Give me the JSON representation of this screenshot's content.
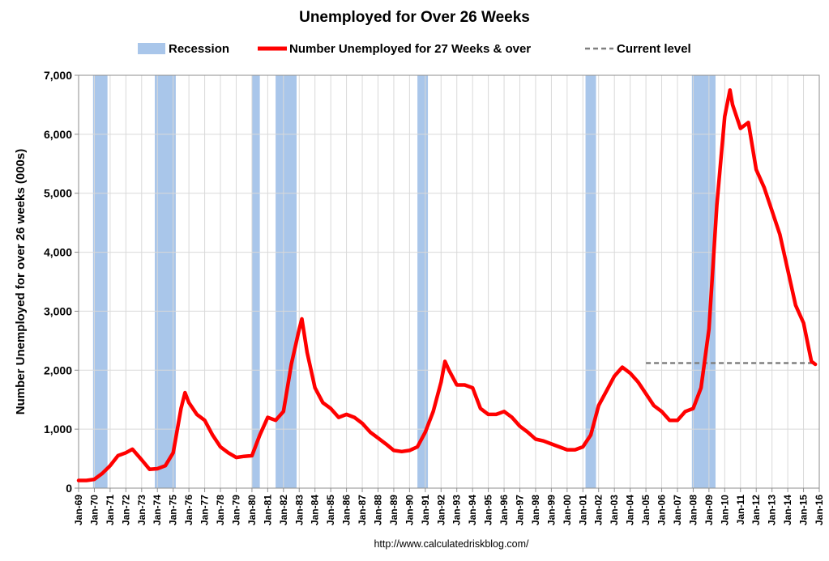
{
  "chart_data": {
    "type": "line",
    "title": "Unemployed for Over 26 Weeks",
    "ylabel": "Number Unemployed for over 26 weeks (000s)",
    "xlabel": "",
    "ylim": [
      0,
      7000
    ],
    "xlim": [
      "Jan-69",
      "Jan-16"
    ],
    "grid": true,
    "legend_position": "top",
    "legend": [
      {
        "key": "recession",
        "label": "Recession",
        "color": "#a9c6ea"
      },
      {
        "key": "series",
        "label": "Number Unemployed for 27 Weeks & over",
        "color": "#ff0000"
      },
      {
        "key": "current",
        "label": "Current level",
        "color": "#808080"
      }
    ],
    "y_ticks": [
      0,
      1000,
      2000,
      3000,
      4000,
      5000,
      6000,
      7000
    ],
    "y_tick_labels": [
      "0",
      "1,000",
      "2,000",
      "3,000",
      "4,000",
      "5,000",
      "6,000",
      "7,000"
    ],
    "x_tick_labels": [
      "Jan-69",
      "Jan-70",
      "Jan-71",
      "Jan-72",
      "Jan-73",
      "Jan-74",
      "Jan-75",
      "Jan-76",
      "Jan-77",
      "Jan-78",
      "Jan-79",
      "Jan-80",
      "Jan-81",
      "Jan-82",
      "Jan-83",
      "Jan-84",
      "Jan-85",
      "Jan-86",
      "Jan-87",
      "Jan-88",
      "Jan-89",
      "Jan-90",
      "Jan-91",
      "Jan-92",
      "Jan-93",
      "Jan-94",
      "Jan-95",
      "Jan-96",
      "Jan-97",
      "Jan-98",
      "Jan-99",
      "Jan-00",
      "Jan-01",
      "Jan-02",
      "Jan-03",
      "Jan-04",
      "Jan-05",
      "Jan-06",
      "Jan-07",
      "Jan-08",
      "Jan-09",
      "Jan-10",
      "Jan-11",
      "Jan-12",
      "Jan-13",
      "Jan-14",
      "Jan-15",
      "Jan-16"
    ],
    "recessions": [
      [
        "Dec-69",
        "Nov-70"
      ],
      [
        "Nov-73",
        "Mar-75"
      ],
      [
        "Jan-80",
        "Jul-80"
      ],
      [
        "Jul-81",
        "Nov-82"
      ],
      [
        "Jul-90",
        "Mar-91"
      ],
      [
        "Mar-01",
        "Nov-01"
      ],
      [
        "Dec-07",
        "Jun-09"
      ]
    ],
    "series": [
      {
        "name": "Number Unemployed for 27 Weeks & over",
        "color": "#ff0000",
        "points": [
          [
            "Jan-69",
            130
          ],
          [
            "Jul-69",
            130
          ],
          [
            "Jan-70",
            150
          ],
          [
            "Jul-70",
            250
          ],
          [
            "Jan-71",
            380
          ],
          [
            "Jul-71",
            550
          ],
          [
            "Jan-72",
            600
          ],
          [
            "Jun-72",
            660
          ],
          [
            "Jan-73",
            480
          ],
          [
            "Jul-73",
            320
          ],
          [
            "Jan-74",
            330
          ],
          [
            "Jul-74",
            380
          ],
          [
            "Jan-75",
            600
          ],
          [
            "Jul-75",
            1350
          ],
          [
            "Oct-75",
            1620
          ],
          [
            "Jan-76",
            1450
          ],
          [
            "Jul-76",
            1250
          ],
          [
            "Jan-77",
            1150
          ],
          [
            "Jul-77",
            900
          ],
          [
            "Jan-78",
            700
          ],
          [
            "Jul-78",
            600
          ],
          [
            "Jan-79",
            520
          ],
          [
            "Jul-79",
            540
          ],
          [
            "Jan-80",
            550
          ],
          [
            "Jul-80",
            900
          ],
          [
            "Jan-81",
            1200
          ],
          [
            "Jul-81",
            1150
          ],
          [
            "Jan-82",
            1300
          ],
          [
            "Jul-82",
            2100
          ],
          [
            "Jan-83",
            2700
          ],
          [
            "Mar-83",
            2870
          ],
          [
            "Jul-83",
            2300
          ],
          [
            "Jan-84",
            1700
          ],
          [
            "Jul-84",
            1450
          ],
          [
            "Jan-85",
            1350
          ],
          [
            "Jul-85",
            1200
          ],
          [
            "Jan-86",
            1250
          ],
          [
            "Jul-86",
            1200
          ],
          [
            "Jan-87",
            1100
          ],
          [
            "Jul-87",
            950
          ],
          [
            "Jan-88",
            850
          ],
          [
            "Jul-88",
            750
          ],
          [
            "Jan-89",
            640
          ],
          [
            "Jul-89",
            620
          ],
          [
            "Jan-90",
            640
          ],
          [
            "Jul-90",
            700
          ],
          [
            "Jan-91",
            950
          ],
          [
            "Jul-91",
            1300
          ],
          [
            "Jan-92",
            1800
          ],
          [
            "Apr-92",
            2150
          ],
          [
            "Jul-92",
            2000
          ],
          [
            "Jan-93",
            1750
          ],
          [
            "Jul-93",
            1750
          ],
          [
            "Jan-94",
            1700
          ],
          [
            "Jul-94",
            1350
          ],
          [
            "Jan-95",
            1250
          ],
          [
            "Jul-95",
            1250
          ],
          [
            "Jan-96",
            1300
          ],
          [
            "Jul-96",
            1200
          ],
          [
            "Jan-97",
            1050
          ],
          [
            "Jul-97",
            950
          ],
          [
            "Jan-98",
            830
          ],
          [
            "Jul-98",
            800
          ],
          [
            "Jan-99",
            750
          ],
          [
            "Jul-99",
            700
          ],
          [
            "Jan-00",
            650
          ],
          [
            "Jul-00",
            650
          ],
          [
            "Jan-01",
            700
          ],
          [
            "Jul-01",
            900
          ],
          [
            "Jan-02",
            1400
          ],
          [
            "Jul-02",
            1650
          ],
          [
            "Jan-03",
            1900
          ],
          [
            "Jul-03",
            2050
          ],
          [
            "Jan-04",
            1950
          ],
          [
            "Jul-04",
            1800
          ],
          [
            "Jan-05",
            1600
          ],
          [
            "Jul-05",
            1400
          ],
          [
            "Jan-06",
            1300
          ],
          [
            "Jul-06",
            1150
          ],
          [
            "Jan-07",
            1150
          ],
          [
            "Jul-07",
            1300
          ],
          [
            "Jan-08",
            1350
          ],
          [
            "Jul-08",
            1700
          ],
          [
            "Jan-09",
            2700
          ],
          [
            "Jul-09",
            4800
          ],
          [
            "Jan-10",
            6300
          ],
          [
            "May-10",
            6750
          ],
          [
            "Jul-10",
            6500
          ],
          [
            "Jan-11",
            6100
          ],
          [
            "Jul-11",
            6200
          ],
          [
            "Jan-12",
            5400
          ],
          [
            "Jul-12",
            5100
          ],
          [
            "Jan-13",
            4700
          ],
          [
            "Jul-13",
            4300
          ],
          [
            "Jan-14",
            3700
          ],
          [
            "Jul-14",
            3100
          ],
          [
            "Jan-15",
            2800
          ],
          [
            "Jul-15",
            2150
          ],
          [
            "Oct-15",
            2100
          ]
        ]
      }
    ],
    "current_level": {
      "value": 2120,
      "from": "Jan-05",
      "to": "Oct-15"
    },
    "source": "http://www.calculatedriskblog.com/"
  }
}
